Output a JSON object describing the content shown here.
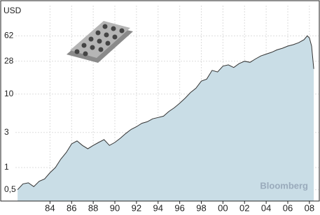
{
  "chart_data": {
    "type": "area",
    "y_label": "USD",
    "watermark": "Bloomberg",
    "log_scale": true,
    "grid": true,
    "color": "#c9dde6",
    "line_color": "#333333",
    "x": [
      1981,
      1981.5,
      1982,
      1982.5,
      1983,
      1983.5,
      1984,
      1984.5,
      1985,
      1985.5,
      1986,
      1986.5,
      1987,
      1987.5,
      1988,
      1988.5,
      1989,
      1989.5,
      1990,
      1990.5,
      1991,
      1991.5,
      1992,
      1992.5,
      1993,
      1993.5,
      1994,
      1994.5,
      1995,
      1995.5,
      1996,
      1996.5,
      1997,
      1997.5,
      1998,
      1998.5,
      1999,
      1999.5,
      2000,
      2000.5,
      2001,
      2001.5,
      2002,
      2002.5,
      2003,
      2003.5,
      2004,
      2004.5,
      2005,
      2005.5,
      2006,
      2006.5,
      2007,
      2007.5,
      2007.8,
      2008,
      2008.2,
      2008.4
    ],
    "values": [
      0.5,
      0.6,
      0.62,
      0.55,
      0.65,
      0.7,
      0.85,
      1.0,
      1.3,
      1.6,
      2.1,
      2.3,
      2.0,
      1.8,
      2.0,
      2.2,
      2.4,
      2.0,
      2.2,
      2.5,
      2.9,
      3.3,
      3.6,
      4.0,
      4.2,
      4.6,
      4.8,
      5.0,
      5.8,
      6.5,
      7.5,
      8.8,
      10.5,
      12,
      15,
      16,
      21,
      20,
      24,
      25,
      23,
      26,
      28,
      27,
      30,
      33,
      35,
      37,
      40,
      42,
      45,
      47,
      50,
      55,
      62,
      58,
      45,
      22
    ],
    "xlim": [
      1980.8,
      2008.85
    ],
    "ylim": [
      0.35,
      160
    ],
    "xticks": [
      {
        "value": 1984,
        "label": "84"
      },
      {
        "value": 1986,
        "label": "86"
      },
      {
        "value": 1988,
        "label": "88"
      },
      {
        "value": 1990,
        "label": "90"
      },
      {
        "value": 1992,
        "label": "92"
      },
      {
        "value": 1994,
        "label": "94"
      },
      {
        "value": 1996,
        "label": "96"
      },
      {
        "value": 1998,
        "label": "98"
      },
      {
        "value": 2000,
        "label": "00"
      },
      {
        "value": 2002,
        "label": "02"
      },
      {
        "value": 2004,
        "label": "04"
      },
      {
        "value": 2006,
        "label": "06"
      },
      {
        "value": 2008,
        "label": "08"
      }
    ],
    "yticks": [
      {
        "value": 0.5,
        "label": "0,5"
      },
      1,
      3,
      10,
      28,
      62
    ]
  }
}
